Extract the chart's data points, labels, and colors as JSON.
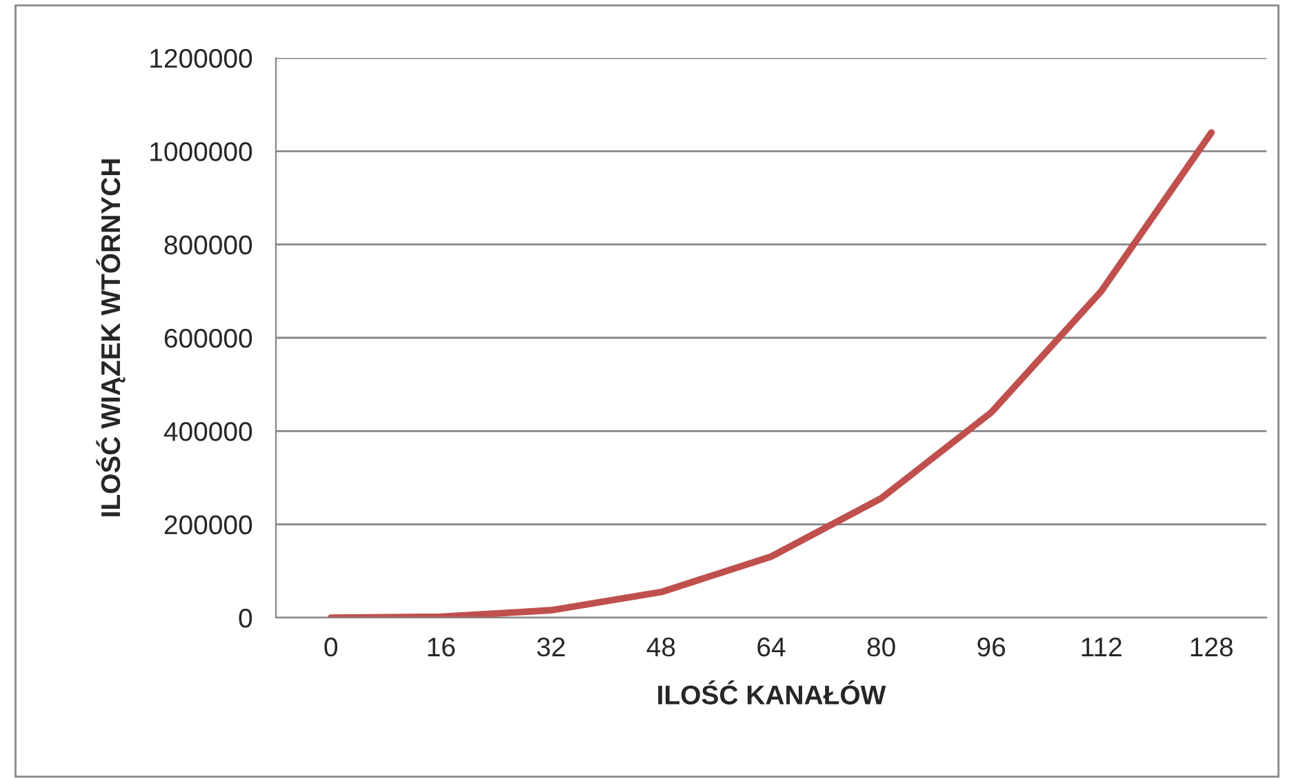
{
  "chart_data": {
    "type": "line",
    "xlabel": "ILOŚĆ KANAŁÓW",
    "ylabel": "ILOŚĆ WIĄZEK WTÓRNYCH",
    "categories": [
      "0",
      "16",
      "32",
      "48",
      "64",
      "80",
      "96",
      "112",
      "128"
    ],
    "series": [
      {
        "color": "#c0504d",
        "values": [
          0,
          2000,
          16000,
          55000,
          131000,
          256000,
          440000,
          700000,
          1040000
        ]
      }
    ],
    "ylim": [
      0,
      1200000
    ],
    "yticks": [
      0,
      200000,
      400000,
      600000,
      800000,
      1000000,
      1200000
    ],
    "grid": "y",
    "marker": "none",
    "line_style": "solid"
  }
}
